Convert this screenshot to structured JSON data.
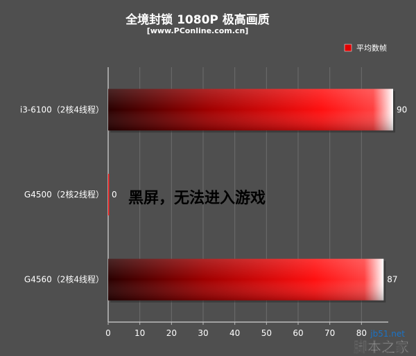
{
  "chart_data": {
    "type": "bar",
    "orientation": "horizontal",
    "title": "全境封锁 1080P 极高画质",
    "subtitle": "[www.PConline.com.cn]",
    "categories": [
      "i3-6100（2核4线程）",
      "G4500（2核2线程）",
      "G4560（2核4线程）"
    ],
    "series": [
      {
        "name": "平均数帧",
        "values": [
          90,
          0,
          87
        ]
      }
    ],
    "value_labels": [
      "90",
      "0",
      "87"
    ],
    "xlim": [
      0,
      90
    ],
    "x_ticks": [
      0,
      10,
      20,
      30,
      40,
      50,
      60,
      70,
      80
    ],
    "grid": true,
    "legend_position": "top-right",
    "annotation": "黑屏，无法进入游戏",
    "colors": {
      "bar_dark": "#3a0000",
      "bar_bright": "#ff1a1a",
      "bar_tip": "#ffffff",
      "background": "#4f4f4f",
      "grid": "#6a6a6a"
    }
  },
  "watermark": {
    "site": "jb51.net",
    "name": "脚本之家"
  }
}
